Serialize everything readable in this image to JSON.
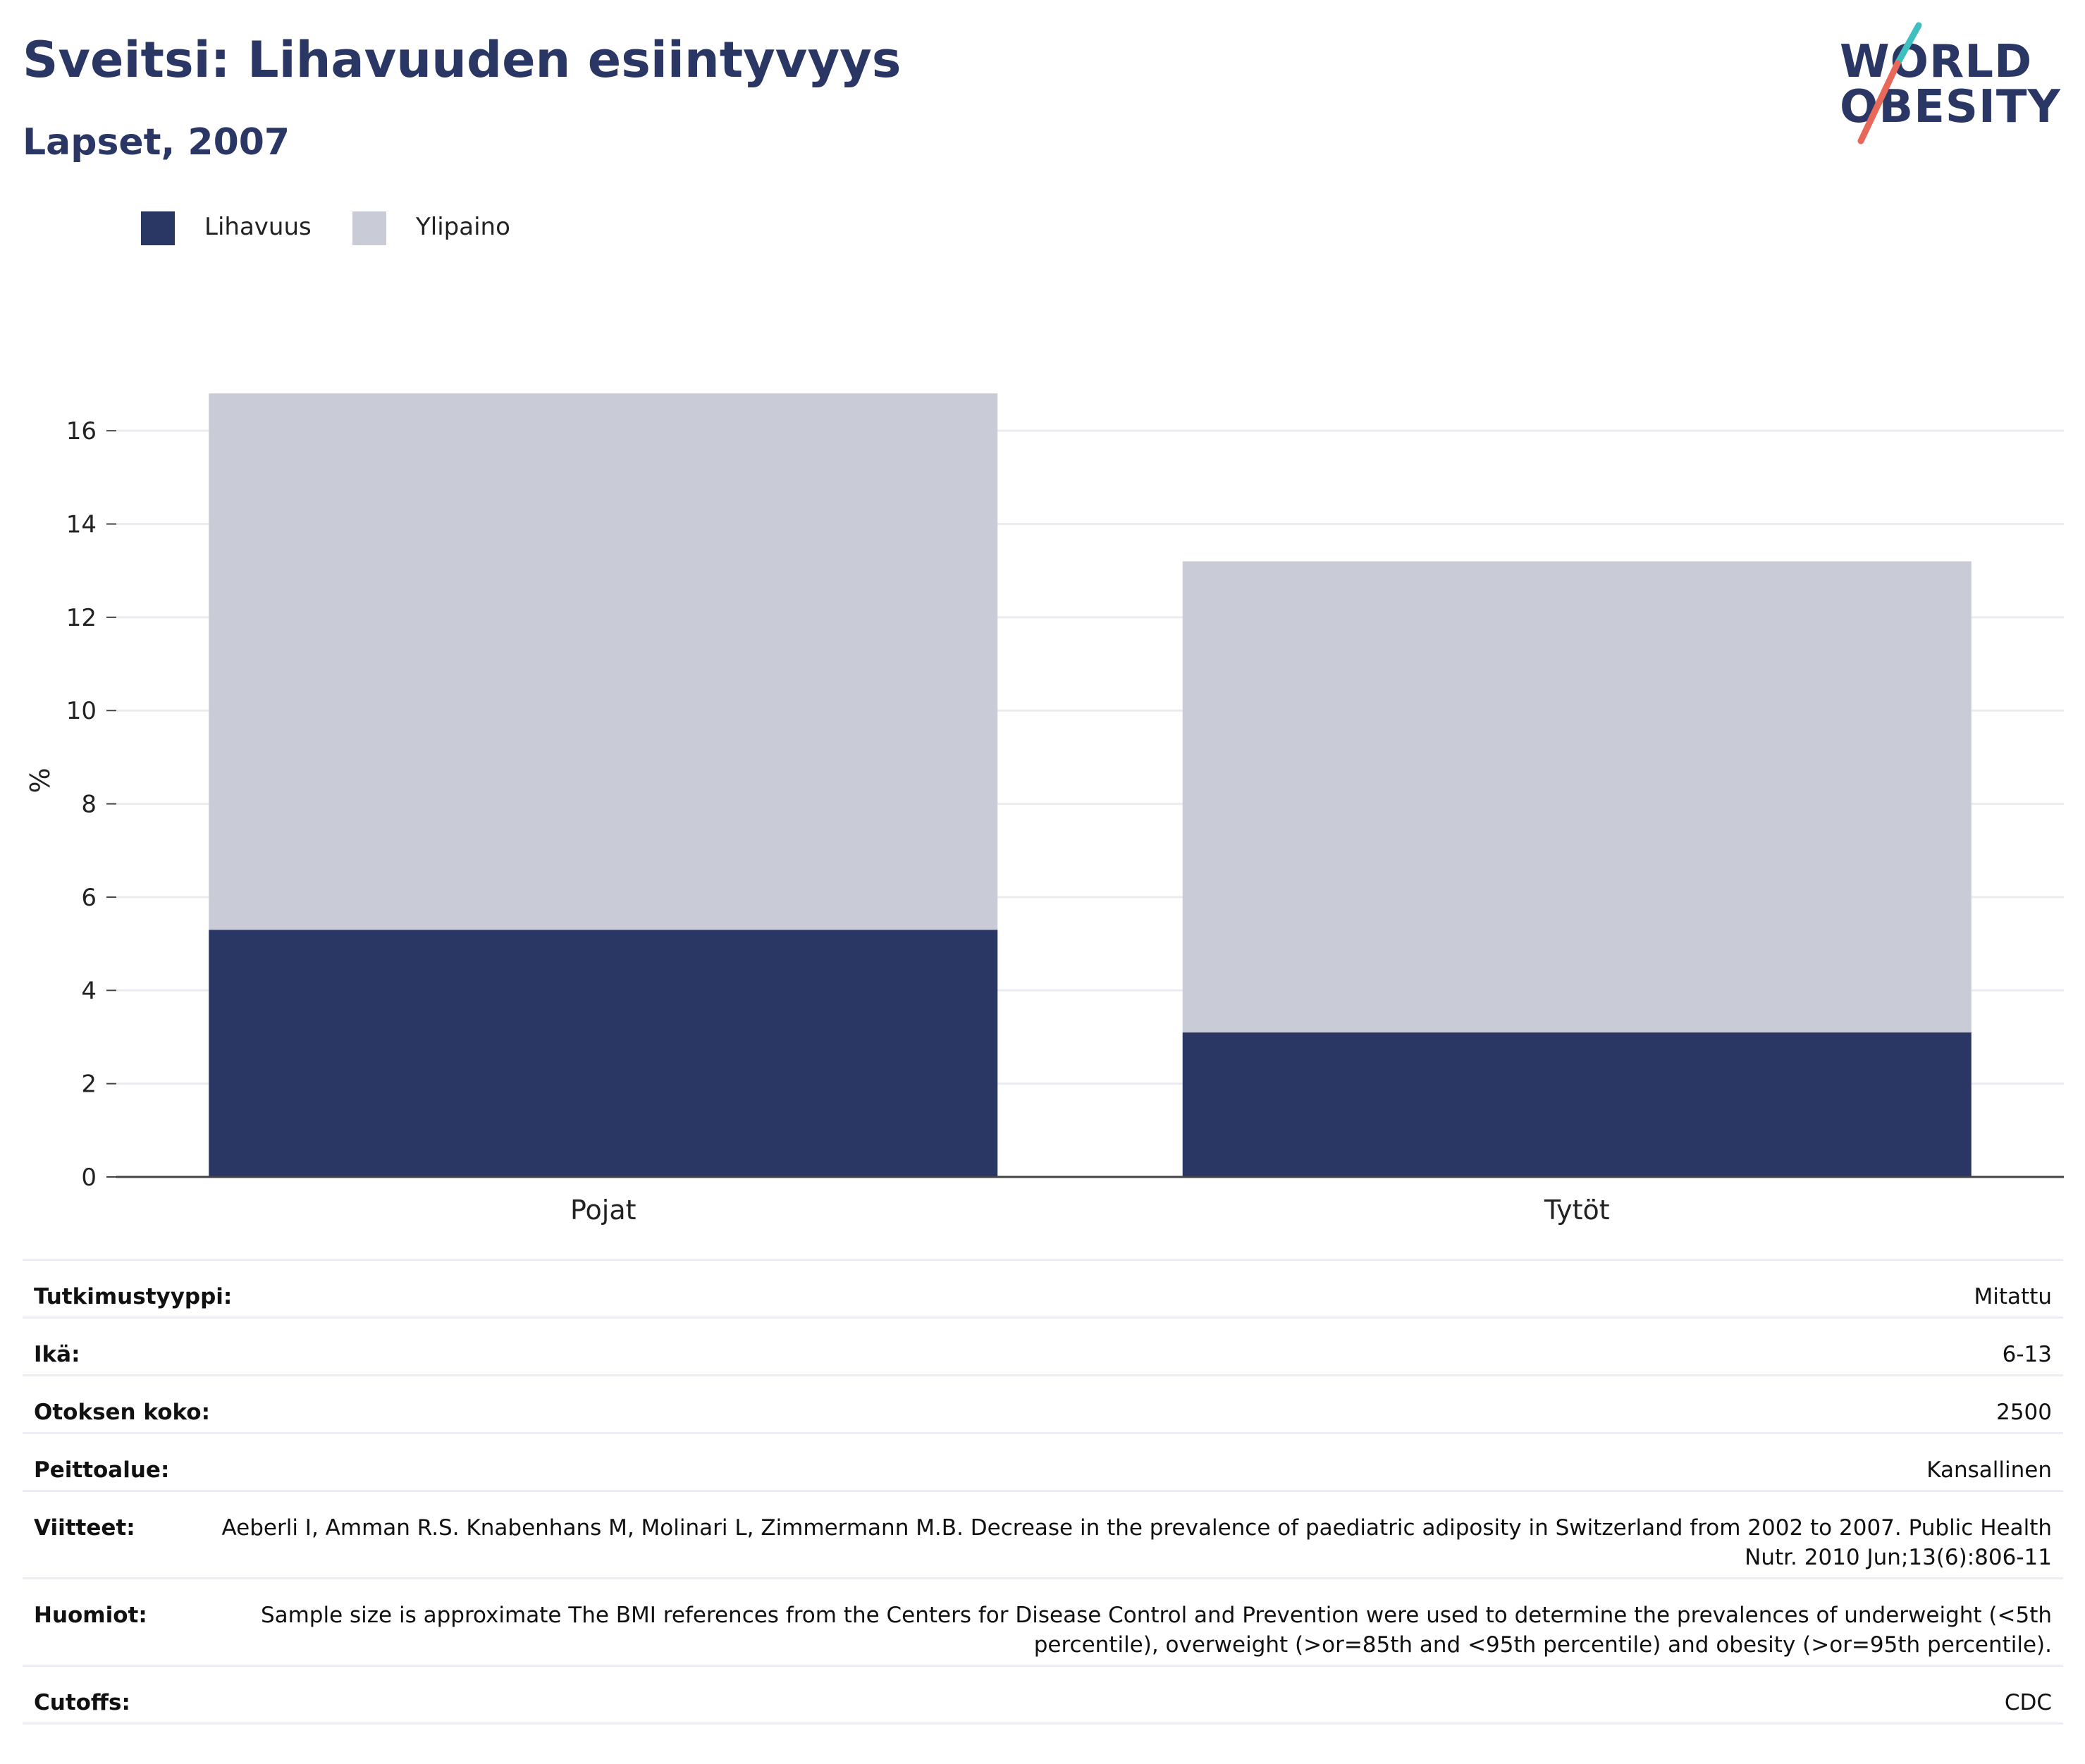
{
  "header": {
    "title": "Sveitsi: Lihavuuden esiintyvyys",
    "subtitle": "Lapset, 2007"
  },
  "logo": {
    "line1": "WORLD",
    "line2": "OBESITY",
    "colors": {
      "text": "#2a3663",
      "slash_top": "#3fbfbf",
      "slash_bottom": "#e8685a"
    }
  },
  "legend": {
    "items": [
      {
        "label": "Lihavuus",
        "color": "#2a3663"
      },
      {
        "label": "Ylipaino",
        "color": "#c9ccd7"
      }
    ]
  },
  "chart_data": {
    "type": "bar",
    "stacked": true,
    "categories": [
      "Pojat",
      "Tytöt"
    ],
    "series": [
      {
        "name": "Lihavuus",
        "color": "#2a3663",
        "values": [
          5.3,
          3.1
        ]
      },
      {
        "name": "Ylipaino",
        "color": "#c9ccd7",
        "values": [
          11.5,
          10.1
        ]
      }
    ],
    "ylabel": "%",
    "ylim": [
      0,
      17
    ],
    "yticks": [
      0,
      2,
      4,
      6,
      8,
      10,
      12,
      14,
      16
    ],
    "grid": true,
    "legend_position": "top-left"
  },
  "info": {
    "rows": [
      {
        "key": "Tutkimustyyppi:",
        "value": "Mitattu"
      },
      {
        "key": "Ikä:",
        "value": "6-13"
      },
      {
        "key": "Otoksen koko:",
        "value": "2500"
      },
      {
        "key": "Peittoalue:",
        "value": "Kansallinen"
      },
      {
        "key": "Viitteet:",
        "value": "Aeberli I, Amman R.S. Knabenhans M, Molinari L, Zimmermann M.B. Decrease in the prevalence of paediatric adiposity in Switzerland from 2002 to 2007. Public Health Nutr. 2010 Jun;13(6):806-11"
      },
      {
        "key": "Huomiot:",
        "value": "Sample size is approximate The BMI references from the Centers for Disease Control and Prevention were used to determine the prevalences of underweight (<5th percentile), overweight (>or=85th and <95th percentile) and obesity (>or=95th percentile)."
      },
      {
        "key": "Cutoffs:",
        "value": "CDC"
      }
    ]
  }
}
